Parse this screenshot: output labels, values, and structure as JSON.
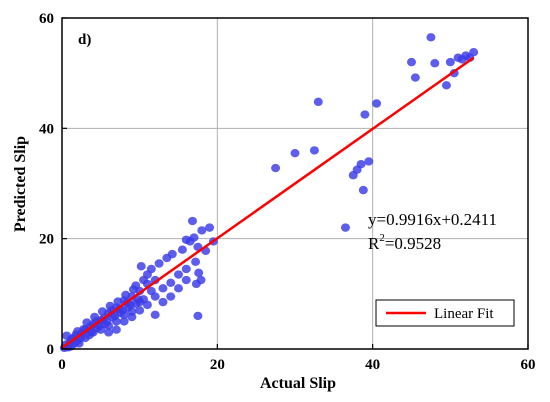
{
  "chart_data": {
    "type": "scatter",
    "panel_label": "d)",
    "xlabel": "Actual Slip",
    "ylabel": "Predicted Slip",
    "xlim": [
      0,
      60
    ],
    "ylim": [
      0,
      60
    ],
    "xticks": [
      0,
      20,
      40,
      60
    ],
    "yticks": [
      0,
      20,
      40,
      60
    ],
    "grid": true,
    "fit": {
      "slope": 0.9916,
      "intercept": 0.2411,
      "x_range": [
        0,
        53
      ],
      "equation_label": "y=0.9916x+0.2411",
      "r2_prefix": "R",
      "r2_sup": "2",
      "r2_suffix": "=0.9528"
    },
    "legend": {
      "placement": "bottom-right",
      "label": "Linear Fit"
    },
    "colors": {
      "points": "#3a3ae8",
      "fit": "#ff0000"
    },
    "points": [
      [
        0.5,
        0.8
      ],
      [
        1.0,
        1.2
      ],
      [
        1.2,
        0.5
      ],
      [
        1.5,
        2.0
      ],
      [
        2.0,
        1.5
      ],
      [
        2.5,
        2.8
      ],
      [
        3.0,
        3.5
      ],
      [
        3.5,
        2.5
      ],
      [
        4.0,
        4.5
      ],
      [
        4.5,
        3.8
      ],
      [
        5.0,
        5.2
      ],
      [
        5.5,
        4.5
      ],
      [
        6.0,
        6.5
      ],
      [
        6.5,
        5.8
      ],
      [
        7.0,
        7.5
      ],
      [
        7.5,
        6.5
      ],
      [
        8.0,
        8.8
      ],
      [
        8.5,
        7.5
      ],
      [
        9.0,
        9.5
      ],
      [
        9.5,
        8.2
      ],
      [
        10.0,
        10.5
      ],
      [
        10.5,
        9.0
      ],
      [
        11.0,
        11.8
      ],
      [
        11.5,
        10.5
      ],
      [
        12.0,
        12.5
      ],
      [
        1.8,
        2.6
      ],
      [
        2.2,
        1.0
      ],
      [
        3.2,
        4.8
      ],
      [
        3.8,
        3.0
      ],
      [
        4.2,
        5.8
      ],
      [
        4.8,
        4.2
      ],
      [
        5.2,
        6.8
      ],
      [
        5.8,
        5.0
      ],
      [
        6.2,
        7.8
      ],
      [
        6.8,
        6.0
      ],
      [
        7.2,
        8.6
      ],
      [
        7.8,
        7.0
      ],
      [
        8.2,
        9.8
      ],
      [
        8.8,
        8.0
      ],
      [
        9.2,
        10.8
      ],
      [
        9.8,
        9.0
      ],
      [
        2.8,
        3.6
      ],
      [
        3.6,
        4.0
      ],
      [
        4.4,
        5.0
      ],
      [
        5.4,
        5.6
      ],
      [
        6.4,
        7.0
      ],
      [
        7.4,
        7.2
      ],
      [
        8.4,
        8.4
      ],
      [
        2.0,
        3.2
      ],
      [
        3.0,
        2.0
      ],
      [
        4.0,
        3.0
      ],
      [
        5.0,
        3.5
      ],
      [
        6.0,
        4.2
      ],
      [
        7.0,
        5.0
      ],
      [
        8.0,
        6.2
      ],
      [
        9.0,
        6.8
      ],
      [
        10.0,
        8.5
      ],
      [
        11.0,
        8.0
      ],
      [
        12.0,
        9.5
      ],
      [
        13.0,
        11.0
      ],
      [
        14.0,
        12.0
      ],
      [
        15.0,
        13.5
      ],
      [
        16.0,
        14.5
      ],
      [
        10.2,
        15.0
      ],
      [
        11.5,
        14.5
      ],
      [
        12.5,
        15.5
      ],
      [
        13.5,
        16.5
      ],
      [
        14.2,
        17.2
      ],
      [
        15.5,
        18.0
      ],
      [
        16.5,
        19.5
      ],
      [
        17.0,
        20.2
      ],
      [
        16.0,
        19.8
      ],
      [
        16.8,
        23.2
      ],
      [
        17.5,
        18.5
      ],
      [
        18.0,
        21.5
      ],
      [
        19.0,
        22.0
      ],
      [
        18.5,
        17.8
      ],
      [
        19.5,
        19.5
      ],
      [
        17.2,
        15.8
      ],
      [
        17.6,
        13.8
      ],
      [
        17.3,
        11.8
      ],
      [
        17.9,
        12.5
      ],
      [
        17.5,
        6.0
      ],
      [
        12.0,
        6.2
      ],
      [
        13.0,
        8.5
      ],
      [
        14.0,
        9.5
      ],
      [
        15.0,
        11.0
      ],
      [
        16.0,
        12.5
      ],
      [
        9.5,
        11.5
      ],
      [
        10.5,
        12.5
      ],
      [
        11.0,
        13.5
      ],
      [
        6.0,
        3.0
      ],
      [
        7.0,
        3.5
      ],
      [
        8.0,
        5.0
      ],
      [
        9.0,
        5.8
      ],
      [
        10.0,
        7.0
      ],
      [
        0.3,
        0.2
      ],
      [
        0.8,
        0.3
      ],
      [
        1.2,
        1.8
      ],
      [
        1.6,
        1.0
      ],
      [
        2.4,
        2.0
      ],
      [
        0.6,
        2.4
      ],
      [
        27.5,
        32.8
      ],
      [
        30.0,
        35.5
      ],
      [
        32.5,
        36.0
      ],
      [
        33.0,
        44.8
      ],
      [
        36.5,
        22.0
      ],
      [
        37.5,
        31.5
      ],
      [
        38.0,
        32.5
      ],
      [
        38.5,
        33.5
      ],
      [
        38.8,
        28.8
      ],
      [
        39.5,
        34.0
      ],
      [
        39.0,
        42.5
      ],
      [
        40.5,
        44.5
      ],
      [
        45.0,
        52.0
      ],
      [
        45.5,
        49.2
      ],
      [
        47.5,
        56.5
      ],
      [
        48.0,
        51.8
      ],
      [
        49.5,
        47.8
      ],
      [
        50.0,
        52.0
      ],
      [
        50.5,
        50.0
      ],
      [
        51.0,
        52.8
      ],
      [
        51.5,
        52.5
      ],
      [
        52.0,
        53.2
      ],
      [
        52.5,
        52.8
      ],
      [
        53.0,
        53.8
      ]
    ]
  }
}
